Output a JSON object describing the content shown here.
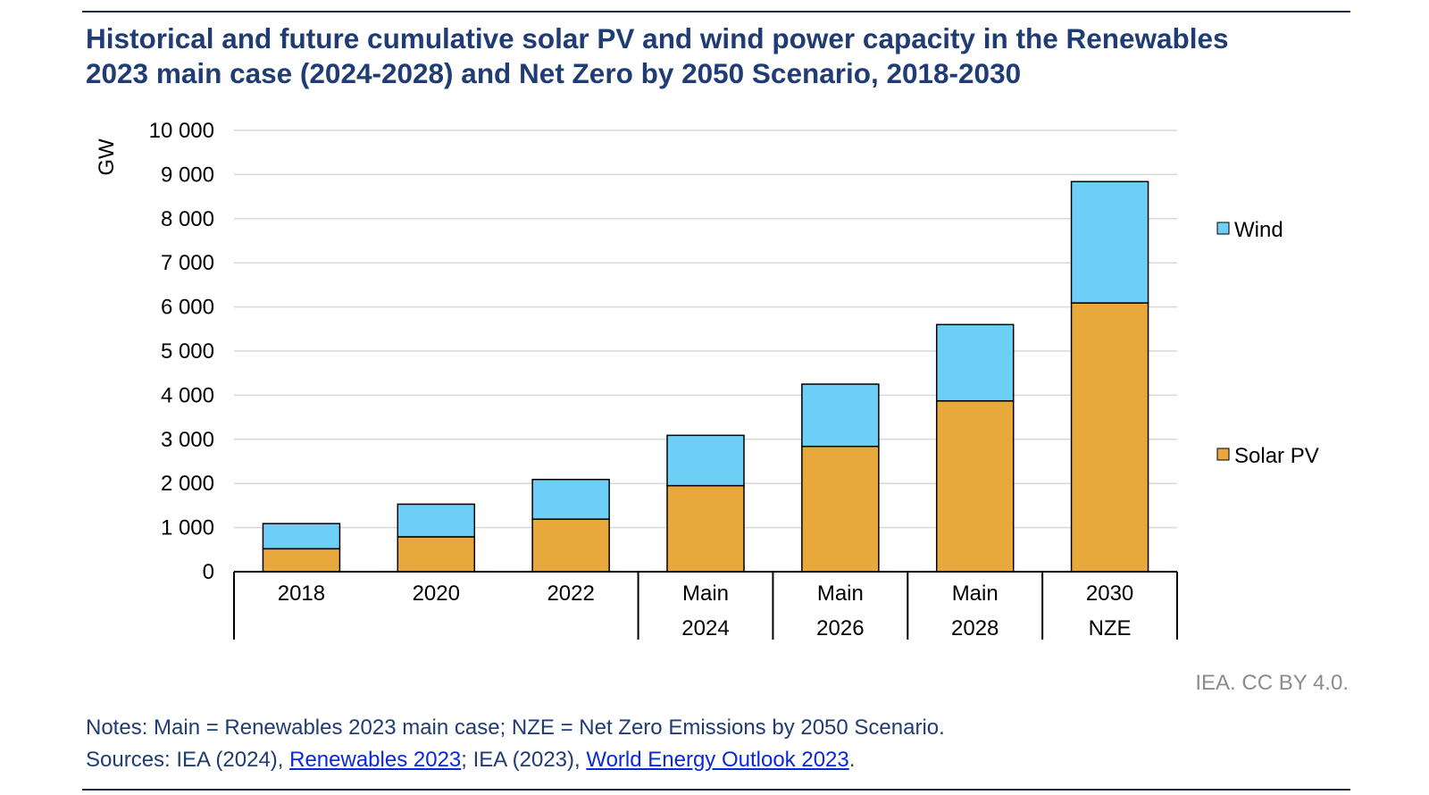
{
  "title": {
    "line1": "Historical and future cumulative solar PV and wind power capacity in the Renewables",
    "line2": "2023 main case (2024-2028) and Net Zero by 2050 Scenario, 2018-2030"
  },
  "chart_data": {
    "type": "bar",
    "stacked": true,
    "ylabel": "GW",
    "ylim": [
      0,
      10000
    ],
    "yticks": [
      "0",
      "1 000",
      "2 000",
      "3 000",
      "4 000",
      "5 000",
      "6 000",
      "7 000",
      "8 000",
      "9 000",
      "10 000"
    ],
    "grid": true,
    "legend_position": "right",
    "categories": [
      [
        "2018"
      ],
      [
        "2020"
      ],
      [
        "2022"
      ],
      [
        "Main",
        "2024"
      ],
      [
        "Main",
        "2026"
      ],
      [
        "Main",
        "2028"
      ],
      [
        "2030",
        "NZE"
      ]
    ],
    "category_groups_separated_after": [
      2,
      3,
      4,
      5
    ],
    "series": [
      {
        "name": "Solar PV",
        "color": "#e8a83c",
        "values": [
          520,
          790,
          1190,
          1950,
          2840,
          3870,
          6090
        ]
      },
      {
        "name": "Wind",
        "color": "#6dcff6",
        "values": [
          570,
          740,
          900,
          1140,
          1410,
          1730,
          2750
        ]
      }
    ]
  },
  "credit": "IEA. CC BY 4.0.",
  "notes": {
    "text": "Notes: Main = Renewables 2023 main case; NZE = Net Zero Emissions by 2050 Scenario.",
    "sources_prefix": "Sources: IEA (2024), ",
    "link1": "Renewables 2023",
    "sources_middle": "; IEA (2023), ",
    "link2": "World Energy Outlook 2023",
    "sources_suffix": "."
  }
}
